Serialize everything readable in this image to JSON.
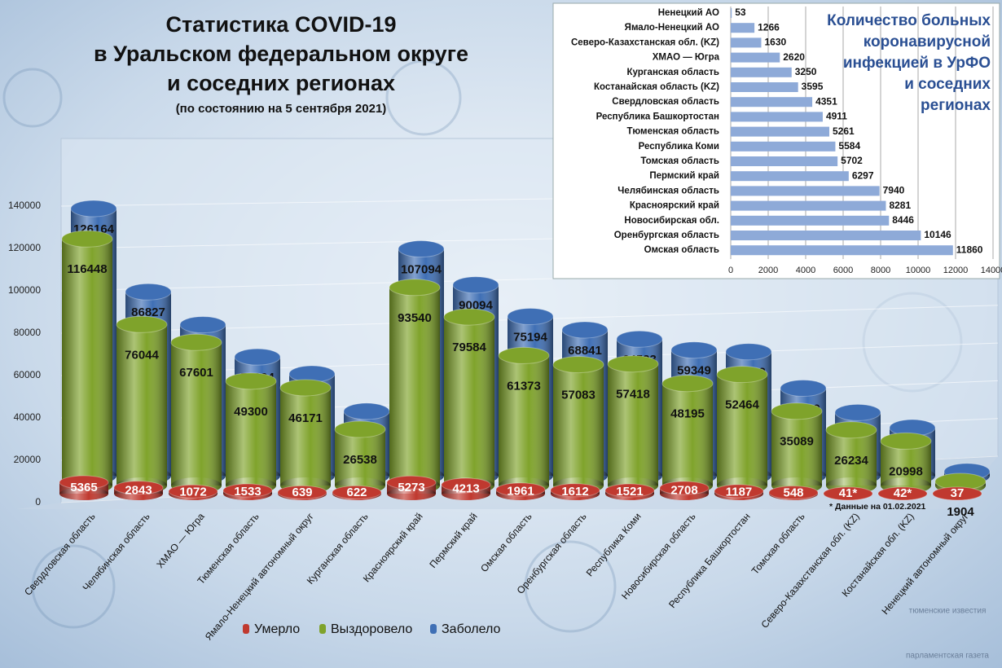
{
  "chart_data": [
    {
      "type": "bar",
      "orientation": "vertical",
      "title": [
        "Статистика COVID-19",
        "в Уральском федеральном округе",
        "и соседних регионах"
      ],
      "subtitle": "(по состоянию на 5 сентября 2021)",
      "categories": [
        "Свердловская область",
        "Челябинская область",
        "ХМАО — Югра",
        "Тюменская область",
        "Ямало-Ненецкий автономный округ",
        "Курганская область",
        "Красноярский край",
        "Пермский край",
        "Омская область",
        "Оренбургская область",
        "Республика Коми",
        "Новосибирская область",
        "Республика Башкортостан",
        "Томская область",
        "Северо-Казахстанская  обл. (KZ)",
        "Костанайская  обл. (KZ)",
        "Ненецкий автономный округ"
      ],
      "series": [
        {
          "name": "Умерло",
          "color": "#c0392f",
          "values": [
            5365,
            2843,
            1072,
            1533,
            639,
            622,
            5273,
            4213,
            1961,
            1612,
            1521,
            2708,
            1187,
            548,
            41,
            42,
            37
          ],
          "value_labels": [
            "5365",
            "2843",
            "1072",
            "1533",
            "639",
            "622",
            "5273",
            "4213",
            "1961",
            "1612",
            "1521",
            "2708",
            "1187",
            "548",
            "41*",
            "42*",
            "37"
          ]
        },
        {
          "name": "Выздоровело",
          "color": "#7fa32b",
          "values": [
            116448,
            76044,
            67601,
            49300,
            46171,
            26538,
            93540,
            79584,
            61373,
            57083,
            57418,
            48195,
            52464,
            35089,
            26234,
            20998,
            1904
          ]
        },
        {
          "name": "Заболело",
          "color": "#3f6fb5",
          "values": [
            126164,
            86827,
            71293,
            56094,
            48076,
            30410,
            107094,
            90094,
            75194,
            68841,
            64523,
            59349,
            58562,
            41339,
            29870,
            22670,
            1994
          ]
        }
      ],
      "ylim": [
        0,
        140000
      ],
      "yticks": [
        0,
        20000,
        40000,
        60000,
        80000,
        100000,
        120000,
        140000
      ],
      "grid": true,
      "legend": "bottom",
      "note": "* Данные на 01.02.2021"
    },
    {
      "type": "bar",
      "orientation": "horizontal",
      "title": [
        "Количество больных",
        "коронавирусной",
        "инфекцией в УрФО",
        "и соседних",
        "регионах"
      ],
      "categories": [
        "Ненецкий АО",
        "Ямало-Ненецкий АО",
        "Северо-Казахстанская обл. (KZ)",
        "ХМАО — Югра",
        "Курганская область",
        "Костанайская область (KZ)",
        "Свердловская область",
        "Республика Башкортостан",
        "Тюменская область",
        "Республика Коми",
        "Томская область",
        "Пермский край",
        "Челябинская область",
        "Красноярский край",
        "Новосибирская обл.",
        "Оренбургская область",
        "Омская область"
      ],
      "values": [
        53,
        1266,
        1630,
        2620,
        3250,
        3595,
        4351,
        4911,
        5261,
        5584,
        5702,
        6297,
        7940,
        8281,
        8446,
        10146,
        11860
      ],
      "color": "#8eaad8",
      "xlim": [
        0,
        14000
      ],
      "xticks": [
        0,
        2000,
        4000,
        6000,
        8000,
        10000,
        12000,
        14000
      ],
      "grid": true
    }
  ],
  "logo": {
    "top": "тюменские известия",
    "bottom": "парламентская газета"
  }
}
